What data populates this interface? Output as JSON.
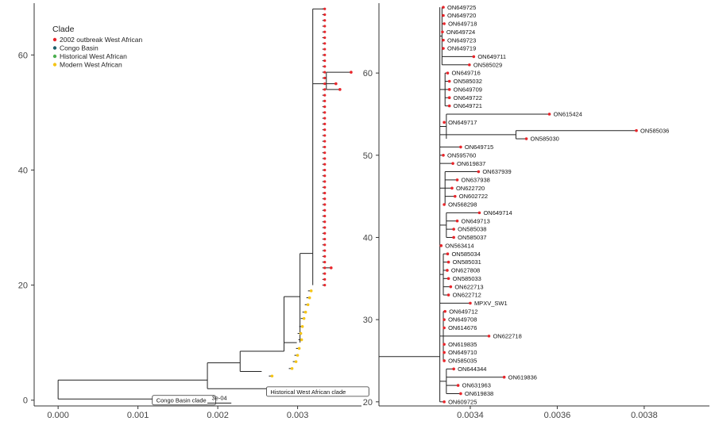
{
  "chart_data": [
    {
      "type": "phylogenetic-tree",
      "panel": "left",
      "legend": {
        "title": "Clade",
        "entries": [
          {
            "label": "2002 outbreak West African",
            "color": "#e8262b"
          },
          {
            "label": "Congo Basin",
            "color": "#1c5f6b"
          },
          {
            "label": "Historical West African",
            "color": "#4caf50"
          },
          {
            "label": "Modern West African",
            "color": "#f5c518"
          }
        ],
        "placement": "top-left"
      },
      "x_ticks": [
        {
          "value": 0.0,
          "label": "0.000"
        },
        {
          "value": 0.001,
          "label": "0.001"
        },
        {
          "value": 0.002,
          "label": "0.002"
        },
        {
          "value": 0.003,
          "label": "0.003"
        }
      ],
      "y_ticks": [
        {
          "value": 0,
          "label": "0"
        },
        {
          "value": 20,
          "label": "20"
        },
        {
          "value": 40,
          "label": "40"
        },
        {
          "value": 60,
          "label": "60"
        }
      ],
      "xlim": [
        -0.0003,
        0.0038
      ],
      "ylim": [
        -1,
        69
      ],
      "annotations": [
        {
          "text": "Congo Basin clade",
          "x": 0.00118,
          "y": 0
        },
        {
          "text": "Historical West African clade",
          "x": 0.00261,
          "y": 1.5
        }
      ],
      "scale_bar": {
        "label": "3e-04",
        "length": 0.0003,
        "x": 0.00187,
        "y": -0.5
      },
      "main_branches": [
        {
          "x1": 0.0,
          "x2": 0.00187,
          "y1": 0.2,
          "y2": 3.5
        },
        {
          "x1": 0.00187,
          "x2": 0.00228,
          "y1": 2.0,
          "y2": 6.5
        },
        {
          "x1": 0.00228,
          "x2": 0.00283,
          "y1": 5.0,
          "y2": 8.5
        },
        {
          "x1": 0.00283,
          "x2": 0.00303,
          "y1": 8.5,
          "y2": 18.0
        },
        {
          "x1": 0.00303,
          "x2": 0.00319,
          "y1": 10.0,
          "y2": 25.5
        },
        {
          "x1": 0.00319,
          "x2": 0.00333,
          "y1": 20.0,
          "y2": 68.0
        }
      ],
      "terminal_branches": [
        {
          "from_x": 0.0,
          "y": 0.2,
          "to_x": 0.00118
        },
        {
          "from_x": 0.00187,
          "y": 2.0,
          "to_x": 0.00261
        },
        {
          "from_x": 0.00228,
          "y": 5.0,
          "to_x": 0.00255
        },
        {
          "from_x": 0.00283,
          "y": 10.0,
          "to_x": 0.00299
        },
        {
          "from_x": 0.00319,
          "y": 55.0,
          "to_x": 0.00336
        },
        {
          "from_x": 0.00333,
          "y": 55.0,
          "to_x": 0.00348
        },
        {
          "from_x": 0.00336,
          "y": 54.0,
          "to_x": 0.00353
        },
        {
          "from_x": 0.00336,
          "y": 57.0,
          "to_x": 0.00367
        },
        {
          "from_x": 0.00333,
          "y": 23.0,
          "to_x": 0.00342
        }
      ],
      "tips_modern_west_african": [
        {
          "x": 0.00268,
          "y": 4.2
        },
        {
          "x": 0.00293,
          "y": 5.5
        },
        {
          "x": 0.00298,
          "y": 6.7
        },
        {
          "x": 0.003,
          "y": 7.8
        },
        {
          "x": 0.00302,
          "y": 9.0
        },
        {
          "x": 0.00305,
          "y": 10.5
        },
        {
          "x": 0.00304,
          "y": 11.6
        },
        {
          "x": 0.00306,
          "y": 12.8
        },
        {
          "x": 0.00308,
          "y": 14.2
        },
        {
          "x": 0.0031,
          "y": 15.3
        },
        {
          "x": 0.00313,
          "y": 16.6
        },
        {
          "x": 0.00315,
          "y": 17.8
        },
        {
          "x": 0.00317,
          "y": 19.0
        }
      ],
      "tips_outbreak_range": {
        "x": 0.00333,
        "y_from": 20,
        "y_to": 68
      }
    },
    {
      "type": "phylogenetic-tree",
      "panel": "right",
      "x_ticks": [
        {
          "value": 0.0034,
          "label": "0.0034"
        },
        {
          "value": 0.0036,
          "label": "0.0036"
        },
        {
          "value": 0.0038,
          "label": "0.0038"
        }
      ],
      "y_ticks": [
        {
          "value": 20,
          "label": "20"
        },
        {
          "value": 30,
          "label": "30"
        },
        {
          "value": 40,
          "label": "40"
        },
        {
          "value": 50,
          "label": "50"
        },
        {
          "value": 60,
          "label": "60"
        }
      ],
      "xlim": [
        0.00319,
        0.00395
      ],
      "ylim": [
        19.5,
        68.5
      ],
      "root_x": 0.00333,
      "tips": [
        {
          "label": "ON649725",
          "x": 0.003338,
          "y": 68
        },
        {
          "label": "ON649720",
          "x": 0.003338,
          "y": 67
        },
        {
          "label": "ON649718",
          "x": 0.00334,
          "y": 66
        },
        {
          "label": "ON649724",
          "x": 0.003336,
          "y": 65
        },
        {
          "label": "ON649723",
          "x": 0.003338,
          "y": 64
        },
        {
          "label": "ON649719",
          "x": 0.003338,
          "y": 63
        },
        {
          "label": "ON649711",
          "x": 0.003408,
          "y": 62
        },
        {
          "label": "ON585029",
          "x": 0.003398,
          "y": 61
        },
        {
          "label": "ON649716",
          "x": 0.003348,
          "y": 60
        },
        {
          "label": "ON585032",
          "x": 0.003352,
          "y": 59
        },
        {
          "label": "ON649709",
          "x": 0.003352,
          "y": 58
        },
        {
          "label": "ON649722",
          "x": 0.003352,
          "y": 57
        },
        {
          "label": "ON649721",
          "x": 0.003352,
          "y": 56
        },
        {
          "label": "ON615424",
          "x": 0.003582,
          "y": 55
        },
        {
          "label": "ON649717",
          "x": 0.00334,
          "y": 54
        },
        {
          "label": "ON585036",
          "x": 0.003782,
          "y": 53
        },
        {
          "label": "ON585030",
          "x": 0.003529,
          "y": 52
        },
        {
          "label": "ON649715",
          "x": 0.003378,
          "y": 51
        },
        {
          "label": "ON595760",
          "x": 0.003338,
          "y": 50
        },
        {
          "label": "ON619837",
          "x": 0.00336,
          "y": 49
        },
        {
          "label": "ON637939",
          "x": 0.003419,
          "y": 48
        },
        {
          "label": "ON637938",
          "x": 0.00337,
          "y": 47
        },
        {
          "label": "ON622720",
          "x": 0.003358,
          "y": 46
        },
        {
          "label": "ON602722",
          "x": 0.003365,
          "y": 45
        },
        {
          "label": "ON568298",
          "x": 0.00334,
          "y": 44
        },
        {
          "label": "ON649714",
          "x": 0.003421,
          "y": 43
        },
        {
          "label": "ON649713",
          "x": 0.00337,
          "y": 42
        },
        {
          "label": "ON585038",
          "x": 0.003362,
          "y": 41
        },
        {
          "label": "ON585037",
          "x": 0.003362,
          "y": 40
        },
        {
          "label": "ON563414",
          "x": 0.003333,
          "y": 39
        },
        {
          "label": "ON585034",
          "x": 0.003348,
          "y": 38
        },
        {
          "label": "ON585031",
          "x": 0.00335,
          "y": 37
        },
        {
          "label": "ON627808",
          "x": 0.003347,
          "y": 36
        },
        {
          "label": "ON585033",
          "x": 0.00335,
          "y": 35
        },
        {
          "label": "ON622713",
          "x": 0.003355,
          "y": 34
        },
        {
          "label": "ON622712",
          "x": 0.00335,
          "y": 33
        },
        {
          "label": "MPXV_SW1",
          "x": 0.0034,
          "y": 32
        },
        {
          "label": "ON649712",
          "x": 0.003342,
          "y": 31
        },
        {
          "label": "ON649708",
          "x": 0.00334,
          "y": 30
        },
        {
          "label": "ON614676",
          "x": 0.00334,
          "y": 29
        },
        {
          "label": "ON622718",
          "x": 0.003443,
          "y": 28
        },
        {
          "label": "ON619835",
          "x": 0.00334,
          "y": 27
        },
        {
          "label": "ON649710",
          "x": 0.00334,
          "y": 26
        },
        {
          "label": "ON585035",
          "x": 0.00334,
          "y": 25
        },
        {
          "label": "ON644344",
          "x": 0.003362,
          "y": 24
        },
        {
          "label": "ON619836",
          "x": 0.003478,
          "y": 23
        },
        {
          "label": "ON631963",
          "x": 0.003372,
          "y": 22
        },
        {
          "label": "ON619838",
          "x": 0.003378,
          "y": 21
        },
        {
          "label": "ON609725",
          "x": 0.00334,
          "y": 20
        }
      ],
      "internal": [
        {
          "x": 0.003335,
          "y_from": 61,
          "y_to": 68
        },
        {
          "x": 0.003342,
          "y_from": 56,
          "y_to": 60
        },
        {
          "x": 0.003345,
          "y_from": 52,
          "y_to": 55
        },
        {
          "x": 0.003505,
          "y_from": 52,
          "y_to": 53
        },
        {
          "x": 0.003342,
          "y_from": 44,
          "y_to": 48
        },
        {
          "x": 0.003345,
          "y_from": 40,
          "y_to": 43
        },
        {
          "x": 0.003338,
          "y_from": 33,
          "y_to": 38
        },
        {
          "x": 0.003338,
          "y_from": 25,
          "y_to": 31
        },
        {
          "x": 0.003345,
          "y_from": 21,
          "y_to": 24
        }
      ]
    }
  ]
}
